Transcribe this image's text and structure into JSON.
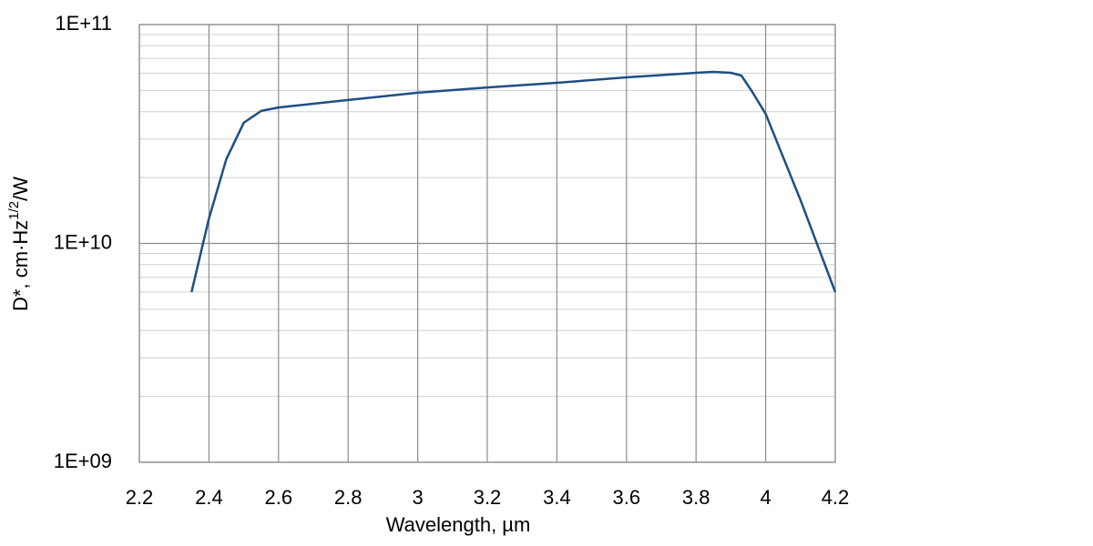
{
  "chart_data": {
    "type": "line",
    "xlabel": "Wavelength, µm",
    "ylabel": [
      "D*, cm·Hz",
      "1/2",
      "/W"
    ],
    "xlim": [
      2.2,
      4.2
    ],
    "xticks": [
      2.2,
      2.4,
      2.6,
      2.8,
      3,
      3.2,
      3.4,
      3.6,
      3.8,
      4,
      4.2
    ],
    "ylim": [
      1000000000,
      100000000000
    ],
    "yticks": [
      {
        "value": 1000000000,
        "label": "1E+09"
      },
      {
        "value": 10000000000,
        "label": "1E+10"
      },
      {
        "value": 100000000000,
        "label": "1E+11"
      }
    ],
    "yscale": "log",
    "grid": true,
    "series": [
      {
        "color": "#1f4e85",
        "x": [
          2.35,
          2.4,
          2.45,
          2.5,
          2.55,
          2.6,
          2.8,
          3.0,
          3.2,
          3.4,
          3.6,
          3.8,
          3.85,
          3.9,
          3.93,
          3.96,
          4.0,
          4.1,
          4.2
        ],
        "values": [
          6000000000,
          13000000000,
          24300000000,
          35600000000,
          40300000000,
          41800000000,
          45200000000,
          48800000000,
          51600000000,
          54200000000,
          57400000000,
          60200000000,
          60800000000,
          60200000000,
          58500000000,
          49700000000,
          39100000000,
          15800000000,
          6000000000
        ]
      }
    ]
  }
}
